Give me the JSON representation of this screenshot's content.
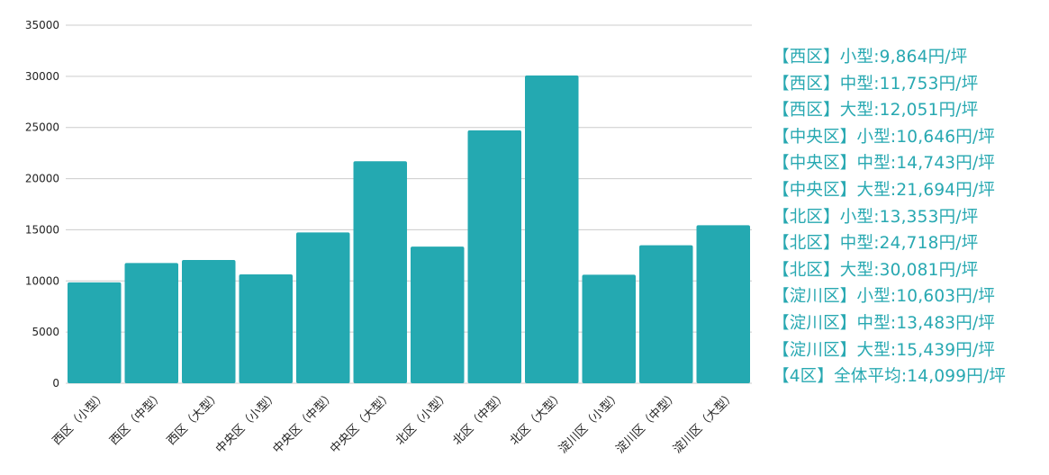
{
  "chart_data": {
    "type": "bar",
    "categories": [
      "西区（小型）",
      "西区（中型）",
      "西区（大型）",
      "中央区（小型）",
      "中央区（中型）",
      "中央区（大型）",
      "北区（小型）",
      "北区（中型）",
      "北区（大型）",
      "淀川区（小型）",
      "淀川区（中型）",
      "淀川区（大型）"
    ],
    "values": [
      9864,
      11753,
      12051,
      10646,
      14743,
      21694,
      13353,
      24718,
      30081,
      10603,
      13483,
      15439
    ],
    "yticks": [
      "0",
      "5000",
      "10000",
      "15000",
      "20000",
      "25000",
      "30000",
      "35000"
    ],
    "ylim": [
      0,
      35000
    ],
    "title": "",
    "xlabel": "",
    "ylabel": "",
    "grid": true,
    "bar_color": "#24a9b1",
    "legend_placement": "right",
    "annotations": [
      "【西区】小型:9,864円/坪",
      "【西区】中型:11,753円/坪",
      "【西区】大型:12,051円/坪",
      "【中央区】小型:10,646円/坪",
      "【中央区】中型:14,743円/坪",
      "【中央区】大型:21,694円/坪",
      "【北区】小型:13,353円/坪",
      "【北区】中型:24,718円/坪",
      "【北区】大型:30,081円/坪",
      "【淀川区】小型:10,603円/坪",
      "【淀川区】中型:13,483円/坪",
      "【淀川区】大型:15,439円/坪",
      "【4区】全体平均:14,099円/坪"
    ],
    "annotation_color": "#27a8b1"
  }
}
